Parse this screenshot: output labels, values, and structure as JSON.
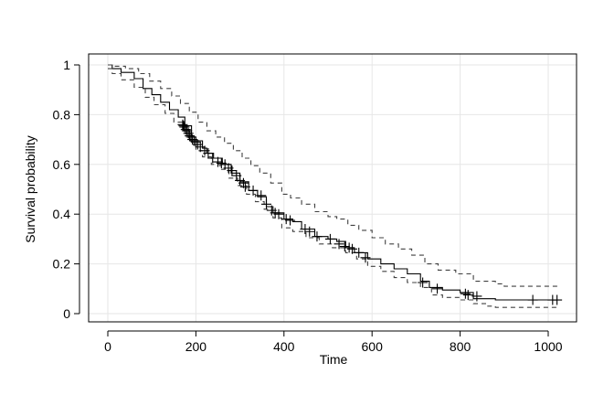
{
  "chart_data": {
    "type": "line",
    "title": "",
    "xlabel": "Time",
    "ylabel": "Survival probability",
    "xlim": [
      -20,
      1050
    ],
    "ylim": [
      -0.03,
      1.04
    ],
    "x_ticks": [
      0,
      200,
      400,
      600,
      800,
      1000
    ],
    "y_ticks": [
      0,
      0.2,
      0.4,
      0.6,
      0.8,
      1
    ],
    "x_tick_labels": [
      "0",
      "200",
      "400",
      "600",
      "800",
      "1000"
    ],
    "y_tick_labels": [
      "0",
      "0.2",
      "0.4",
      "0.6",
      "0.8",
      "1"
    ],
    "grid": true,
    "series": [
      {
        "role": "estimate",
        "style": "solid",
        "color": "#000000",
        "points": [
          [
            0,
            1
          ],
          [
            10,
            0.985
          ],
          [
            30,
            0.97
          ],
          [
            60,
            0.945
          ],
          [
            80,
            0.905
          ],
          [
            100,
            0.88
          ],
          [
            120,
            0.85
          ],
          [
            140,
            0.82
          ],
          [
            160,
            0.79
          ],
          [
            175,
            0.755
          ],
          [
            190,
            0.71
          ],
          [
            200,
            0.695
          ],
          [
            215,
            0.665
          ],
          [
            225,
            0.645
          ],
          [
            240,
            0.625
          ],
          [
            260,
            0.6
          ],
          [
            280,
            0.565
          ],
          [
            300,
            0.53
          ],
          [
            320,
            0.495
          ],
          [
            340,
            0.47
          ],
          [
            360,
            0.43
          ],
          [
            375,
            0.405
          ],
          [
            400,
            0.38
          ],
          [
            420,
            0.37
          ],
          [
            440,
            0.34
          ],
          [
            470,
            0.31
          ],
          [
            500,
            0.3
          ],
          [
            520,
            0.29
          ],
          [
            540,
            0.265
          ],
          [
            560,
            0.245
          ],
          [
            590,
            0.22
          ],
          [
            620,
            0.2
          ],
          [
            650,
            0.18
          ],
          [
            680,
            0.16
          ],
          [
            710,
            0.13
          ],
          [
            730,
            0.105
          ],
          [
            760,
            0.095
          ],
          [
            800,
            0.085
          ],
          [
            830,
            0.06
          ],
          [
            880,
            0.055
          ],
          [
            1025,
            0.055
          ]
        ]
      },
      {
        "role": "upper-ci",
        "style": "dashed",
        "color": "#404040",
        "points": [
          [
            0,
            1
          ],
          [
            10,
            0.995
          ],
          [
            40,
            0.985
          ],
          [
            70,
            0.965
          ],
          [
            95,
            0.935
          ],
          [
            120,
            0.905
          ],
          [
            145,
            0.875
          ],
          [
            165,
            0.845
          ],
          [
            185,
            0.81
          ],
          [
            205,
            0.77
          ],
          [
            225,
            0.735
          ],
          [
            245,
            0.71
          ],
          [
            265,
            0.685
          ],
          [
            285,
            0.655
          ],
          [
            305,
            0.625
          ],
          [
            325,
            0.595
          ],
          [
            345,
            0.565
          ],
          [
            370,
            0.525
          ],
          [
            395,
            0.48
          ],
          [
            415,
            0.465
          ],
          [
            440,
            0.44
          ],
          [
            470,
            0.41
          ],
          [
            500,
            0.39
          ],
          [
            520,
            0.38
          ],
          [
            545,
            0.355
          ],
          [
            570,
            0.335
          ],
          [
            600,
            0.305
          ],
          [
            630,
            0.28
          ],
          [
            660,
            0.26
          ],
          [
            690,
            0.235
          ],
          [
            720,
            0.2
          ],
          [
            750,
            0.175
          ],
          [
            790,
            0.16
          ],
          [
            830,
            0.13
          ],
          [
            880,
            0.12
          ],
          [
            900,
            0.11
          ],
          [
            1025,
            0.11
          ]
        ]
      },
      {
        "role": "lower-ci",
        "style": "dashed",
        "color": "#404040",
        "points": [
          [
            0,
            0.985
          ],
          [
            10,
            0.965
          ],
          [
            30,
            0.94
          ],
          [
            60,
            0.91
          ],
          [
            85,
            0.87
          ],
          [
            105,
            0.84
          ],
          [
            130,
            0.805
          ],
          [
            150,
            0.77
          ],
          [
            170,
            0.74
          ],
          [
            185,
            0.695
          ],
          [
            200,
            0.655
          ],
          [
            215,
            0.63
          ],
          [
            235,
            0.6
          ],
          [
            255,
            0.58
          ],
          [
            275,
            0.545
          ],
          [
            295,
            0.515
          ],
          [
            315,
            0.48
          ],
          [
            335,
            0.45
          ],
          [
            355,
            0.42
          ],
          [
            375,
            0.385
          ],
          [
            395,
            0.345
          ],
          [
            420,
            0.33
          ],
          [
            450,
            0.305
          ],
          [
            480,
            0.28
          ],
          [
            510,
            0.265
          ],
          [
            540,
            0.245
          ],
          [
            565,
            0.22
          ],
          [
            590,
            0.19
          ],
          [
            620,
            0.17
          ],
          [
            650,
            0.145
          ],
          [
            680,
            0.125
          ],
          [
            710,
            0.105
          ],
          [
            735,
            0.075
          ],
          [
            760,
            0.065
          ],
          [
            800,
            0.055
          ],
          [
            830,
            0.04
          ],
          [
            860,
            0.03
          ],
          [
            880,
            0.025
          ],
          [
            1025,
            0.025
          ]
        ]
      }
    ],
    "censor_marks": {
      "symbol": "+",
      "color": "#000000",
      "points": [
        [
          170,
          0.76
        ],
        [
          172,
          0.755
        ],
        [
          174,
          0.75
        ],
        [
          177,
          0.74
        ],
        [
          180,
          0.735
        ],
        [
          183,
          0.725
        ],
        [
          186,
          0.715
        ],
        [
          189,
          0.71
        ],
        [
          192,
          0.7
        ],
        [
          196,
          0.695
        ],
        [
          200,
          0.69
        ],
        [
          204,
          0.68
        ],
        [
          210,
          0.67
        ],
        [
          220,
          0.655
        ],
        [
          228,
          0.645
        ],
        [
          238,
          0.625
        ],
        [
          250,
          0.61
        ],
        [
          258,
          0.605
        ],
        [
          266,
          0.6
        ],
        [
          274,
          0.585
        ],
        [
          282,
          0.575
        ],
        [
          292,
          0.555
        ],
        [
          300,
          0.535
        ],
        [
          308,
          0.525
        ],
        [
          312,
          0.51
        ],
        [
          330,
          0.495
        ],
        [
          348,
          0.475
        ],
        [
          360,
          0.44
        ],
        [
          372,
          0.415
        ],
        [
          380,
          0.405
        ],
        [
          388,
          0.4
        ],
        [
          405,
          0.38
        ],
        [
          414,
          0.375
        ],
        [
          448,
          0.34
        ],
        [
          458,
          0.33
        ],
        [
          475,
          0.31
        ],
        [
          505,
          0.3
        ],
        [
          525,
          0.28
        ],
        [
          538,
          0.27
        ],
        [
          548,
          0.265
        ],
        [
          555,
          0.26
        ],
        [
          570,
          0.245
        ],
        [
          585,
          0.225
        ],
        [
          715,
          0.125
        ],
        [
          748,
          0.1
        ],
        [
          812,
          0.08
        ],
        [
          818,
          0.075
        ],
        [
          838,
          0.07
        ],
        [
          965,
          0.055
        ],
        [
          1010,
          0.055
        ],
        [
          1020,
          0.055
        ]
      ]
    }
  }
}
